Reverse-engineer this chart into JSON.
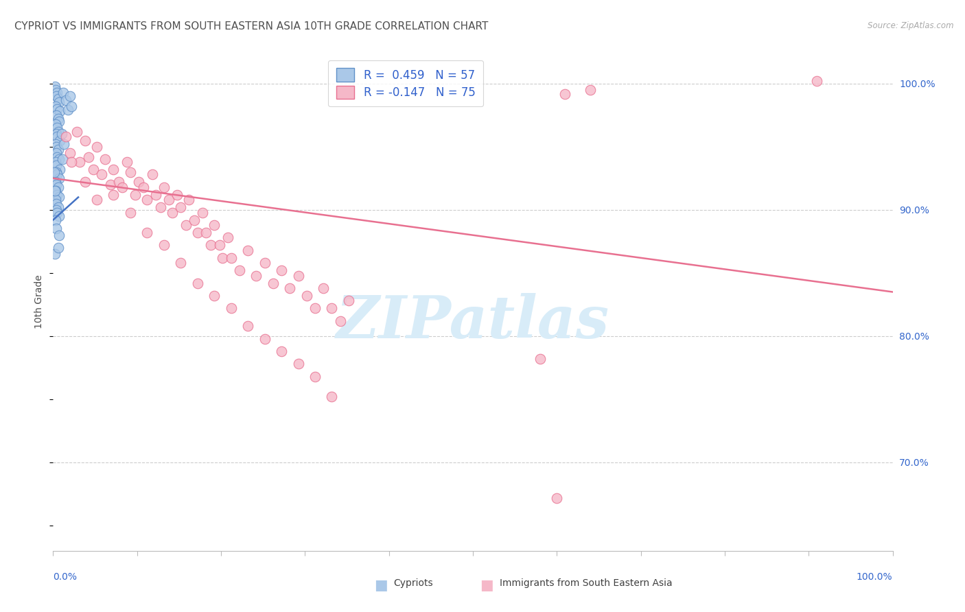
{
  "title": "CYPRIOT VS IMMIGRANTS FROM SOUTH EASTERN ASIA 10TH GRADE CORRELATION CHART",
  "source": "Source: ZipAtlas.com",
  "ylabel": "10th Grade",
  "xmin": 0.0,
  "xmax": 100.0,
  "ymin": 63.0,
  "ymax": 102.5,
  "ytick_values": [
    70.0,
    80.0,
    90.0,
    100.0
  ],
  "blue_R": 0.459,
  "blue_N": 57,
  "pink_R": -0.147,
  "pink_N": 75,
  "blue_fill_color": "#aac8e8",
  "pink_fill_color": "#f5b8c8",
  "blue_edge_color": "#6090c8",
  "pink_edge_color": "#e87090",
  "pink_line_color": "#e87090",
  "blue_line_color": "#4472c4",
  "legend_R_color": "#3060cc",
  "grid_color": "#cccccc",
  "background_color": "#ffffff",
  "title_color": "#505050",
  "axis_label_color": "#3366cc",
  "watermark_color": "#d8ecf8",
  "bottom_left_label": "Cypriots",
  "bottom_right_label": "Immigrants from South Eastern Asia",
  "legend_blue_label": "R =  0.459   N = 57",
  "legend_pink_label": "R = -0.147   N = 75",
  "blue_dots": [
    [
      0.2,
      99.8
    ],
    [
      0.3,
      99.5
    ],
    [
      0.5,
      99.3
    ],
    [
      0.4,
      99.0
    ],
    [
      0.6,
      98.8
    ],
    [
      0.7,
      98.5
    ],
    [
      0.3,
      98.2
    ],
    [
      0.5,
      98.0
    ],
    [
      0.8,
      97.8
    ],
    [
      0.4,
      97.5
    ],
    [
      0.6,
      97.2
    ],
    [
      0.7,
      97.0
    ],
    [
      0.3,
      96.8
    ],
    [
      0.5,
      96.5
    ],
    [
      0.6,
      96.2
    ],
    [
      0.4,
      96.0
    ],
    [
      0.5,
      95.8
    ],
    [
      0.8,
      95.5
    ],
    [
      0.3,
      95.2
    ],
    [
      0.4,
      95.0
    ],
    [
      0.6,
      94.8
    ],
    [
      0.4,
      94.5
    ],
    [
      0.5,
      94.2
    ],
    [
      0.7,
      94.0
    ],
    [
      0.3,
      93.8
    ],
    [
      0.4,
      93.5
    ],
    [
      0.8,
      93.2
    ],
    [
      0.4,
      93.0
    ],
    [
      0.5,
      92.8
    ],
    [
      0.7,
      92.5
    ],
    [
      0.3,
      92.2
    ],
    [
      0.4,
      92.0
    ],
    [
      0.6,
      91.8
    ],
    [
      0.3,
      91.5
    ],
    [
      0.5,
      91.2
    ],
    [
      0.7,
      91.0
    ],
    [
      0.3,
      90.8
    ],
    [
      0.4,
      90.5
    ],
    [
      0.6,
      90.2
    ],
    [
      0.4,
      90.0
    ],
    [
      0.5,
      89.8
    ],
    [
      0.7,
      89.5
    ],
    [
      0.3,
      89.2
    ],
    [
      1.2,
      99.3
    ],
    [
      1.5,
      98.7
    ],
    [
      1.8,
      97.9
    ],
    [
      2.0,
      99.0
    ],
    [
      2.2,
      98.2
    ],
    [
      0.2,
      91.5
    ],
    [
      0.1,
      93.0
    ],
    [
      0.4,
      88.5
    ],
    [
      1.0,
      96.0
    ],
    [
      1.3,
      95.2
    ],
    [
      0.7,
      88.0
    ],
    [
      1.1,
      94.0
    ],
    [
      0.2,
      86.5
    ],
    [
      0.6,
      87.0
    ]
  ],
  "pink_dots": [
    [
      1.5,
      95.8
    ],
    [
      2.0,
      94.5
    ],
    [
      2.8,
      96.2
    ],
    [
      3.2,
      93.8
    ],
    [
      3.8,
      95.5
    ],
    [
      4.2,
      94.2
    ],
    [
      4.8,
      93.2
    ],
    [
      5.2,
      95.0
    ],
    [
      5.8,
      92.8
    ],
    [
      6.2,
      94.0
    ],
    [
      6.8,
      92.0
    ],
    [
      7.2,
      93.2
    ],
    [
      7.8,
      92.2
    ],
    [
      8.2,
      91.8
    ],
    [
      8.8,
      93.8
    ],
    [
      9.2,
      93.0
    ],
    [
      9.8,
      91.2
    ],
    [
      10.2,
      92.2
    ],
    [
      10.8,
      91.8
    ],
    [
      11.2,
      90.8
    ],
    [
      11.8,
      92.8
    ],
    [
      12.2,
      91.2
    ],
    [
      12.8,
      90.2
    ],
    [
      13.2,
      91.8
    ],
    [
      13.8,
      90.8
    ],
    [
      14.2,
      89.8
    ],
    [
      14.8,
      91.2
    ],
    [
      15.2,
      90.2
    ],
    [
      15.8,
      88.8
    ],
    [
      16.2,
      90.8
    ],
    [
      16.8,
      89.2
    ],
    [
      17.2,
      88.2
    ],
    [
      17.8,
      89.8
    ],
    [
      18.2,
      88.2
    ],
    [
      18.8,
      87.2
    ],
    [
      19.2,
      88.8
    ],
    [
      19.8,
      87.2
    ],
    [
      20.2,
      86.2
    ],
    [
      20.8,
      87.8
    ],
    [
      21.2,
      86.2
    ],
    [
      22.2,
      85.2
    ],
    [
      23.2,
      86.8
    ],
    [
      24.2,
      84.8
    ],
    [
      25.2,
      85.8
    ],
    [
      26.2,
      84.2
    ],
    [
      27.2,
      85.2
    ],
    [
      28.2,
      83.8
    ],
    [
      29.2,
      84.8
    ],
    [
      30.2,
      83.2
    ],
    [
      31.2,
      82.2
    ],
    [
      32.2,
      83.8
    ],
    [
      33.2,
      82.2
    ],
    [
      34.2,
      81.2
    ],
    [
      35.2,
      82.8
    ],
    [
      2.2,
      93.8
    ],
    [
      3.8,
      92.2
    ],
    [
      5.2,
      90.8
    ],
    [
      7.2,
      91.2
    ],
    [
      9.2,
      89.8
    ],
    [
      11.2,
      88.2
    ],
    [
      13.2,
      87.2
    ],
    [
      15.2,
      85.8
    ],
    [
      17.2,
      84.2
    ],
    [
      19.2,
      83.2
    ],
    [
      21.2,
      82.2
    ],
    [
      23.2,
      80.8
    ],
    [
      25.2,
      79.8
    ],
    [
      27.2,
      78.8
    ],
    [
      29.2,
      77.8
    ],
    [
      31.2,
      76.8
    ],
    [
      33.2,
      75.2
    ],
    [
      58.0,
      78.2
    ],
    [
      60.0,
      67.2
    ],
    [
      61.0,
      99.2
    ],
    [
      64.0,
      99.5
    ],
    [
      91.0,
      100.2
    ]
  ],
  "pink_line_x0": 0.0,
  "pink_line_y0": 92.5,
  "pink_line_x1": 100.0,
  "pink_line_y1": 83.5,
  "blue_line_x0": 0.0,
  "blue_line_y0": 89.2,
  "blue_line_x1": 3.0,
  "blue_line_y1": 91.0
}
